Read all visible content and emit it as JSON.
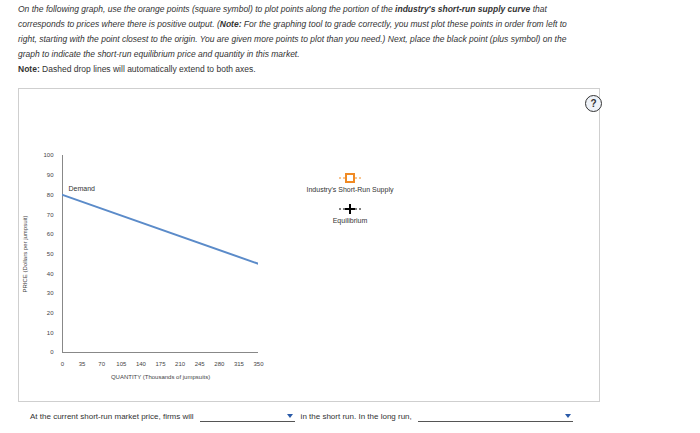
{
  "header": {
    "instructions": [
      [
        {
          "text": "On the following graph, use the orange points (square symbol) to plot points along the portion of the ",
          "bold": false
        },
        {
          "text": "industry's short-run supply curve",
          "bold": true
        },
        {
          "text": " that",
          "bold": false
        }
      ],
      [
        {
          "text": "corresponds to prices where there is positive output. (",
          "bold": false
        },
        {
          "text": "Note:",
          "bold": true
        },
        {
          "text": " For the graphing tool to grade correctly, you must plot these points in order from left to",
          "bold": false
        }
      ],
      [
        {
          "text": "right, starting with the point closest to the origin. You are given more points to plot than you need.) Next, place the black point (plus symbol) on the",
          "bold": false
        }
      ],
      [
        {
          "text": "graph to indicate the short-run equilibrium price and quantity in this market.",
          "bold": false
        }
      ]
    ],
    "note": [
      {
        "text": "Note:",
        "bold": true
      },
      {
        "text": " Dashed drop lines will automatically extend to both axes.",
        "bold": false
      }
    ]
  },
  "help": "?",
  "chart_data": {
    "type": "line",
    "x_label": "QUANTITY (Thousands of jumpsuits)",
    "y_label": "PRICE (Dollars per jumpsuit)",
    "series": [
      {
        "name": "Demand",
        "color": "#5b8bc9",
        "x": [
          0,
          350
        ],
        "values": [
          80,
          45
        ]
      }
    ],
    "xlim": [
      0,
      350
    ],
    "ylim": [
      0,
      100
    ],
    "xticks": [
      0,
      35,
      70,
      105,
      140,
      175,
      210,
      245,
      280,
      315,
      350
    ],
    "yticks": [
      0,
      10,
      20,
      30,
      40,
      50,
      60,
      70,
      80,
      90,
      100
    ]
  },
  "legend": [
    {
      "label": "Industry's Short-Run Supply",
      "color": "#f08a24",
      "marker": "square"
    },
    {
      "label": "Equilibrium",
      "color": "#000000",
      "marker": "plus"
    }
  ],
  "footer": [
    "At the current short-run market price, firms will",
    "in the short run. In the long run,"
  ]
}
